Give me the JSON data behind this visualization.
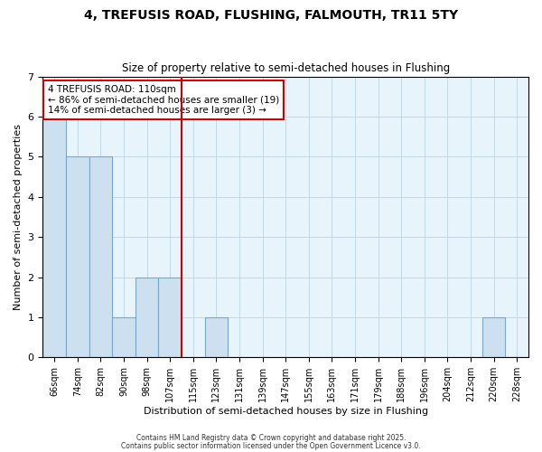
{
  "title": "4, TREFUSIS ROAD, FLUSHING, FALMOUTH, TR11 5TY",
  "subtitle": "Size of property relative to semi-detached houses in Flushing",
  "xlabel": "Distribution of semi-detached houses by size in Flushing",
  "ylabel": "Number of semi-detached properties",
  "annotation_line1": "4 TREFUSIS ROAD: 110sqm",
  "annotation_line2": "← 86% of semi-detached houses are smaller (19)",
  "annotation_line3": "14% of semi-detached houses are larger (3) →",
  "categories": [
    "66sqm",
    "74sqm",
    "82sqm",
    "90sqm",
    "98sqm",
    "107sqm",
    "115sqm",
    "123sqm",
    "131sqm",
    "139sqm",
    "147sqm",
    "155sqm",
    "163sqm",
    "171sqm",
    "179sqm",
    "188sqm",
    "196sqm",
    "204sqm",
    "212sqm",
    "220sqm",
    "228sqm"
  ],
  "values": [
    6,
    5,
    5,
    1,
    2,
    2,
    0,
    1,
    0,
    0,
    0,
    0,
    0,
    0,
    0,
    0,
    0,
    0,
    0,
    1,
    0
  ],
  "bar_color": "#cce0f0",
  "bar_edge_color": "#6aaadd",
  "red_line_index": 6,
  "subject_line_color": "#cc0000",
  "background_color": "#e8f4fc",
  "grid_color": "#c0d8ec",
  "footer_line1": "Contains HM Land Registry data © Crown copyright and database right 2025.",
  "footer_line2": "Contains public sector information licensed under the Open Government Licence v3.0.",
  "ylim": [
    0,
    7
  ],
  "yticks": [
    0,
    1,
    2,
    3,
    4,
    5,
    6,
    7
  ]
}
